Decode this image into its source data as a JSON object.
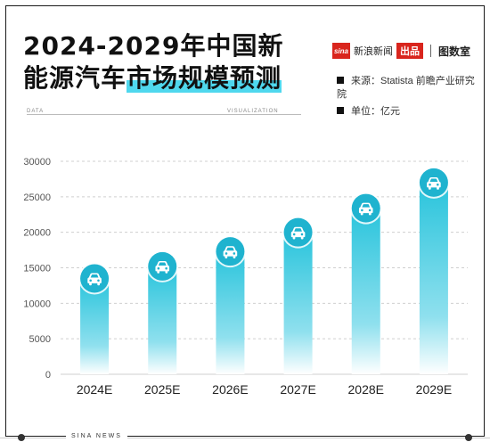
{
  "header": {
    "title_line1": "2024-2029年中国新",
    "title_line2_plain": "能源汽车",
    "title_line2_highlight": "市场规模预测"
  },
  "brand": {
    "logo": "sina",
    "name": "新浪新闻",
    "badge": "出品",
    "sub": "图数室"
  },
  "info": {
    "source": "来源：Statista 前瞻产业研究院",
    "unit": "单位：亿元"
  },
  "labels": {
    "data": "DATA",
    "visualization": "VISUALIZATION",
    "footer": "SINA NEWS"
  },
  "colors": {
    "bar_top": "#29c4dc",
    "bar_bottom": "#ffffff",
    "circle": "#1fb3cf",
    "grid": "#cfcfcf",
    "highlight": "#4fd8ee"
  },
  "chart_data": {
    "type": "bar",
    "categories": [
      "2024E",
      "2025E",
      "2026E",
      "2027E",
      "2028E",
      "2029E"
    ],
    "values": [
      13500,
      15200,
      17300,
      20000,
      23400,
      27000
    ],
    "ylim": [
      0,
      30000
    ],
    "yticks": [
      0,
      5000,
      10000,
      15000,
      20000,
      25000,
      30000
    ],
    "grid": true,
    "icon": "car-icon"
  }
}
